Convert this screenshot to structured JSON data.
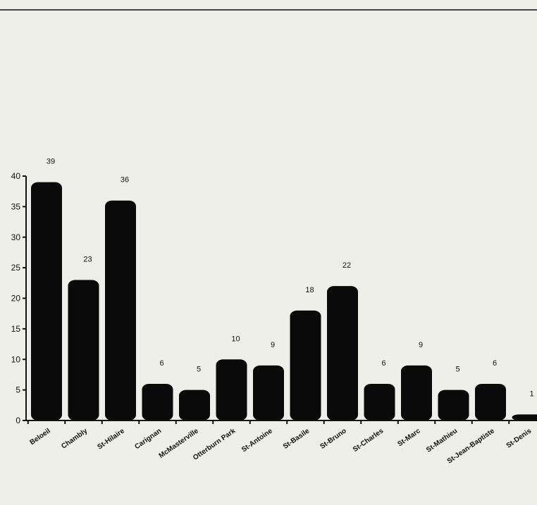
{
  "chart_data": {
    "type": "bar",
    "categories": [
      "Beloeil",
      "Chambly",
      "St-Hilaire",
      "Carignan",
      "McMasterville",
      "Otterburn Park",
      "St-Antoine",
      "St-Basile",
      "St-Bruno",
      "St-Charles",
      "St-Marc",
      "St-Mathieu",
      "St-Jean-Baptiste",
      "St-Denis"
    ],
    "values": [
      39,
      23,
      36,
      6,
      5,
      10,
      9,
      18,
      22,
      6,
      9,
      5,
      6,
      1
    ],
    "data_labels": [
      "39",
      "23",
      "36",
      "6",
      "5",
      "10",
      "9",
      "18",
      "22",
      "6",
      "9",
      "5",
      "6",
      "1"
    ],
    "y_ticks": [
      0,
      5,
      10,
      15,
      20,
      25,
      30,
      35,
      40
    ],
    "ylim": [
      0,
      40
    ],
    "grid": false,
    "bar_color": "#0a0a0a",
    "background_color": "#efefe9"
  }
}
